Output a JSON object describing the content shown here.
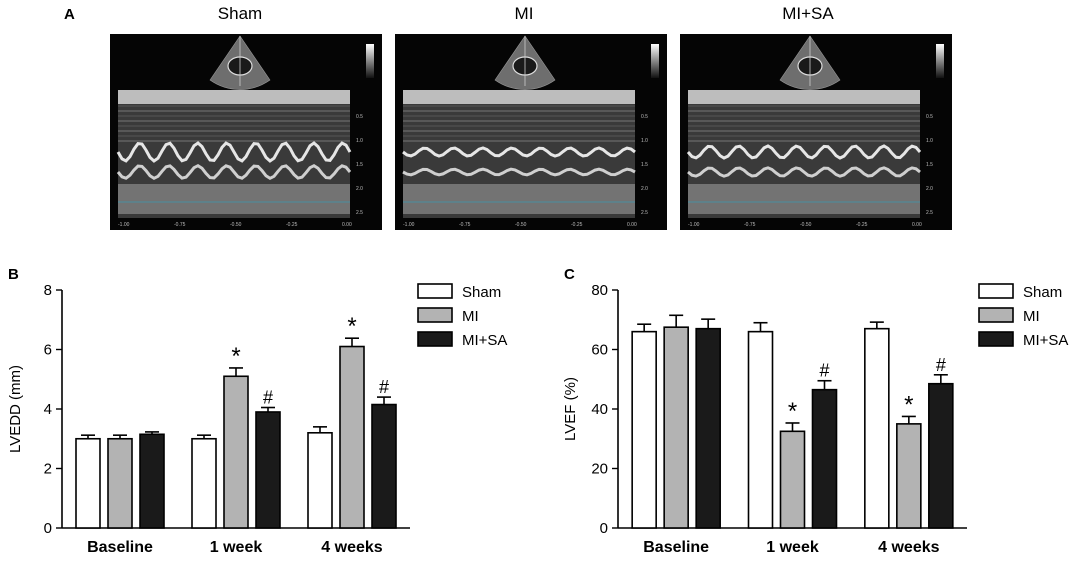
{
  "panel_a": {
    "letter": "A",
    "groups": [
      {
        "title": "Sham",
        "mmode_ticks": [
          "0.5",
          "1.0",
          "1.5",
          "2.0",
          "2.5"
        ],
        "time_ticks": [
          "-1.00",
          "-0.75",
          "-0.50",
          "-0.25",
          "0.00"
        ]
      },
      {
        "title": "MI",
        "mmode_ticks": [
          "0.5",
          "1.0",
          "1.5",
          "2.0",
          "2.5"
        ],
        "time_ticks": [
          "-1.00",
          "-0.75",
          "-0.50",
          "-0.25",
          "0.00"
        ]
      },
      {
        "title": "MI+SA",
        "mmode_ticks": [
          "0.5",
          "1.0",
          "1.5",
          "2.0",
          "2.5"
        ],
        "time_ticks": [
          "-1.00",
          "-0.75",
          "-0.50",
          "-0.25",
          "0.00"
        ]
      }
    ]
  },
  "chart_data": [
    {
      "panel": "B",
      "type": "bar",
      "ylabel": "LVEDD (mm)",
      "ylim": [
        0,
        8
      ],
      "yticks": [
        0,
        2,
        4,
        6,
        8
      ],
      "categories": [
        "Baseline",
        "1 week",
        "4 weeks"
      ],
      "series": [
        {
          "name": "Sham",
          "color": "#ffffff",
          "values": [
            3.0,
            3.0,
            3.2
          ],
          "errors": [
            0.12,
            0.12,
            0.2
          ],
          "marks": [
            "",
            "",
            ""
          ]
        },
        {
          "name": "MI",
          "color": "#b3b3b3",
          "values": [
            3.0,
            5.1,
            6.1
          ],
          "errors": [
            0.12,
            0.28,
            0.28
          ],
          "marks": [
            "",
            "*",
            "*"
          ]
        },
        {
          "name": "MI+SA",
          "color": "#1a1a1a",
          "values": [
            3.15,
            3.9,
            4.15
          ],
          "errors": [
            0.08,
            0.15,
            0.25
          ],
          "marks": [
            "",
            "#",
            "#"
          ]
        }
      ],
      "legend": "top-right"
    },
    {
      "panel": "C",
      "type": "bar",
      "ylabel": "LVEF (%)",
      "ylim": [
        0,
        80
      ],
      "yticks": [
        0,
        20,
        40,
        60,
        80
      ],
      "categories": [
        "Baseline",
        "1 week",
        "4 weeks"
      ],
      "series": [
        {
          "name": "Sham",
          "color": "#ffffff",
          "values": [
            66,
            66,
            67
          ],
          "errors": [
            2.5,
            3,
            2.2
          ],
          "marks": [
            "",
            "",
            ""
          ]
        },
        {
          "name": "MI",
          "color": "#b3b3b3",
          "values": [
            67.5,
            32.5,
            35
          ],
          "errors": [
            4,
            2.8,
            2.5
          ],
          "marks": [
            "",
            "*",
            "*"
          ]
        },
        {
          "name": "MI+SA",
          "color": "#1a1a1a",
          "values": [
            67,
            46.5,
            48.5
          ],
          "errors": [
            3.2,
            3,
            3
          ],
          "marks": [
            "",
            "#",
            "#"
          ]
        }
      ],
      "legend": "top-right"
    }
  ]
}
